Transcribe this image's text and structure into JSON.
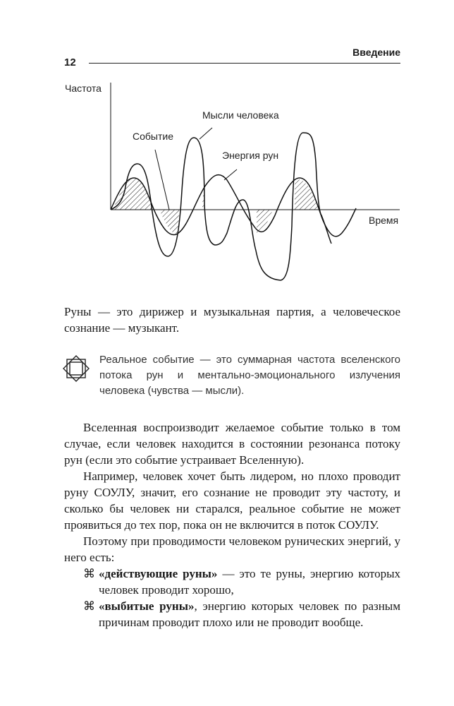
{
  "header": {
    "page_number": "12",
    "section": "Введение"
  },
  "diagram": {
    "y_axis_label": "Частота",
    "x_axis_label": "Время",
    "labels": {
      "thoughts": "Мысли человека",
      "event": "Событие",
      "runes": "Энергия рун"
    }
  },
  "caption": "Руны — это дирижер и музыкальная партия, а человеческое сознание — музыкант.",
  "note": {
    "icon": "double-square-rune-icon",
    "text": "Реальное событие — это суммарная частота вселенского потока рун и ментально-эмоционального излучения человека (чувства — мысли)."
  },
  "body": {
    "paragraphs": [
      "Вселенная воспроизводит желаемое событие только в том случае, если человек находится в состоянии резонанса потоку рун (если это событие устраивает Вселенную).",
      "Например, человек хочет быть лидером, но плохо проводит руну СОУЛУ, значит, его сознание не проводит эту частоту, и сколько бы человек ни старался, реальное событие не может проявиться до тех пор, пока он не включится в поток СОУЛУ.",
      "Поэтому при проводимости человеком рунических энергий, у него есть:"
    ],
    "bullet_glyph": "⌘",
    "bullets": [
      {
        "bold": "«действующие руны»",
        "rest": " — это те руны, энергию которых человек проводит хорошо,"
      },
      {
        "bold": "«выбитые руны»",
        "rest": ", энергию которых человек по разным причинам проводит плохо или не проводит вообще."
      }
    ]
  }
}
